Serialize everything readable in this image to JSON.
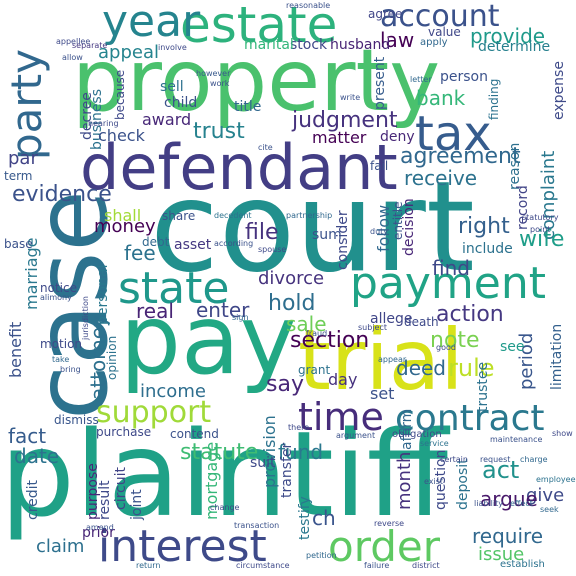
{
  "words": [
    {
      "text": "court",
      "color": "#21908d"
    },
    {
      "text": "plaintiff",
      "color": "#1fa187"
    },
    {
      "text": "property",
      "color": "#4ac16d"
    },
    {
      "text": "case",
      "color": "#2c728e"
    },
    {
      "text": "pay",
      "color": "#22a884"
    },
    {
      "text": "trial",
      "color": "#d8e219"
    },
    {
      "text": "defendant",
      "color": "#433e85"
    },
    {
      "text": "estate",
      "color": "#2db27d"
    },
    {
      "text": "year",
      "color": "#25848e"
    },
    {
      "text": "party",
      "color": "#31688e"
    },
    {
      "text": "tax",
      "color": "#365c8d"
    },
    {
      "text": "account",
      "color": "#3b528b"
    },
    {
      "text": "payment",
      "color": "#20a386"
    },
    {
      "text": "state",
      "color": "#1f988b"
    },
    {
      "text": "interest",
      "color": "#3e4a89"
    },
    {
      "text": "order",
      "color": "#5ec962"
    },
    {
      "text": "contract",
      "color": "#2a788e"
    },
    {
      "text": "time",
      "color": "#472d7b"
    },
    {
      "text": "support",
      "color": "#a0da39"
    },
    {
      "text": "section",
      "color": "#440154"
    },
    {
      "text": "rule",
      "color": "#bddf26"
    },
    {
      "text": "note",
      "color": "#7ad151"
    },
    {
      "text": "evidence",
      "color": "#3b528b"
    },
    {
      "text": "agreement",
      "color": "#31688e"
    },
    {
      "text": "judgment",
      "color": "#46327e"
    },
    {
      "text": "trust",
      "color": "#26828e"
    },
    {
      "text": "award",
      "color": "#482878"
    },
    {
      "text": "appeal",
      "color": "#25848e"
    },
    {
      "text": "provide",
      "color": "#1f9a8a"
    },
    {
      "text": "law",
      "color": "#440154"
    },
    {
      "text": "bank",
      "color": "#35b779"
    },
    {
      "text": "receive",
      "color": "#2c728e"
    },
    {
      "text": "complaint",
      "color": "#2a788e"
    },
    {
      "text": "right",
      "color": "#34608d"
    },
    {
      "text": "wife",
      "color": "#1f9e89"
    },
    {
      "text": "find",
      "color": "#3e4989"
    },
    {
      "text": "fee",
      "color": "#2c728e"
    },
    {
      "text": "file",
      "color": "#46327e"
    },
    {
      "text": "money",
      "color": "#440154"
    },
    {
      "text": "shall",
      "color": "#a2da37"
    },
    {
      "text": "divorce",
      "color": "#46337e"
    },
    {
      "text": "hold",
      "color": "#2e6e8e"
    },
    {
      "text": "enter",
      "color": "#3f4788"
    },
    {
      "text": "real",
      "color": "#482475"
    },
    {
      "text": "sale",
      "color": "#6ece58"
    },
    {
      "text": "action",
      "color": "#453882"
    },
    {
      "text": "period",
      "color": "#39568c"
    },
    {
      "text": "income",
      "color": "#2e6e8e"
    },
    {
      "text": "say",
      "color": "#482878"
    },
    {
      "text": "day",
      "color": "#46327e"
    },
    {
      "text": "set",
      "color": "#3b528b"
    },
    {
      "text": "deed",
      "color": "#31688e"
    },
    {
      "text": "fact",
      "color": "#365c8d"
    },
    {
      "text": "date",
      "color": "#2c728e"
    },
    {
      "text": "statute",
      "color": "#3fbc73"
    },
    {
      "text": "fund",
      "color": "#2a788e"
    },
    {
      "text": "month",
      "color": "#46327e"
    },
    {
      "text": "act",
      "color": "#21918c"
    },
    {
      "text": "give",
      "color": "#3e4a89"
    },
    {
      "text": "argue",
      "color": "#48186a"
    },
    {
      "text": "require",
      "color": "#31688e"
    },
    {
      "text": "issue",
      "color": "#54c568"
    },
    {
      "text": "claim",
      "color": "#2d708e"
    },
    {
      "text": "prior",
      "color": "#482576"
    },
    {
      "text": "ch",
      "color": "#3a548c"
    },
    {
      "text": "benefit",
      "color": "#3b528b"
    },
    {
      "text": "marriage",
      "color": "#2a788e"
    },
    {
      "text": "attorney",
      "color": "#2d708e"
    },
    {
      "text": "business",
      "color": "#2c728e"
    },
    {
      "text": "decree",
      "color": "#3e4a89"
    },
    {
      "text": "par",
      "color": "#414487"
    },
    {
      "text": "check",
      "color": "#3b528b"
    },
    {
      "text": "matter",
      "color": "#440154"
    },
    {
      "text": "stock",
      "color": "#3f4788"
    },
    {
      "text": "husband",
      "color": "#482475"
    },
    {
      "text": "marital",
      "color": "#32b67a"
    },
    {
      "text": "sell",
      "color": "#2d708e"
    },
    {
      "text": "child",
      "color": "#3b528b"
    },
    {
      "text": "agree",
      "color": "#404688"
    },
    {
      "text": "value",
      "color": "#3f4788"
    },
    {
      "text": "determine",
      "color": "#27808e"
    },
    {
      "text": "person",
      "color": "#3b528b"
    },
    {
      "text": "present",
      "color": "#365c8d"
    },
    {
      "text": "deny",
      "color": "#482878"
    },
    {
      "text": "reason",
      "color": "#2d708e"
    },
    {
      "text": "record",
      "color": "#414487"
    },
    {
      "text": "expense",
      "color": "#3e4a89"
    },
    {
      "text": "limitation",
      "color": "#34608d"
    },
    {
      "text": "follow",
      "color": "#31688e"
    },
    {
      "text": "entitle",
      "color": "#3b528b"
    },
    {
      "text": "decision",
      "color": "#482677"
    },
    {
      "text": "include",
      "color": "#2c728e"
    },
    {
      "text": "allege",
      "color": "#404688"
    },
    {
      "text": "consider",
      "color": "#3e4989"
    },
    {
      "text": "sum",
      "color": "#3b528b"
    },
    {
      "text": "asset",
      "color": "#453882"
    },
    {
      "text": "debt",
      "color": "#31688e"
    },
    {
      "text": "personal",
      "color": "#2a788e"
    },
    {
      "text": "notice",
      "color": "#3e4989"
    },
    {
      "text": "motion",
      "color": "#3e4a89"
    },
    {
      "text": "opinion",
      "color": "#2c728e"
    },
    {
      "text": "purchase",
      "color": "#3e4989"
    },
    {
      "text": "contend",
      "color": "#3b528b"
    },
    {
      "text": "provision",
      "color": "#2c728e"
    },
    {
      "text": "circuit",
      "color": "#414487"
    },
    {
      "text": "transfer",
      "color": "#3e4a89"
    },
    {
      "text": "mortgage",
      "color": "#35b779"
    },
    {
      "text": "joint",
      "color": "#3b528b"
    },
    {
      "text": "purpose",
      "color": "#482878"
    },
    {
      "text": "result",
      "color": "#3e4989"
    },
    {
      "text": "credit",
      "color": "#38598c"
    },
    {
      "text": "dismiss",
      "color": "#39568c"
    },
    {
      "text": "share",
      "color": "#3b528b"
    },
    {
      "text": "grant",
      "color": "#2c728e"
    },
    {
      "text": "suit",
      "color": "#3e4989"
    },
    {
      "text": "testify",
      "color": "#2a788e"
    },
    {
      "text": "trustee",
      "color": "#2c728e"
    },
    {
      "text": "question",
      "color": "#3e4989"
    },
    {
      "text": "affirm",
      "color": "#31688e"
    },
    {
      "text": "deposit",
      "color": "#2c728e"
    },
    {
      "text": "see",
      "color": "#1f9a8a"
    },
    {
      "text": "death",
      "color": "#3e4989"
    },
    {
      "text": "base",
      "color": "#3b528b"
    },
    {
      "text": "term",
      "color": "#38598c"
    },
    {
      "text": "fail",
      "color": "#3b528b"
    },
    {
      "text": "finding",
      "color": "#2c728e"
    },
    {
      "text": "because",
      "color": "#3e4989"
    },
    {
      "text": "work",
      "color": "#3b528b"
    },
    {
      "text": "however",
      "color": "#38598c"
    },
    {
      "text": "involve",
      "color": "#3e4989"
    },
    {
      "text": "separate",
      "color": "#453882"
    },
    {
      "text": "apply",
      "color": "#31688e"
    },
    {
      "text": "reasonable",
      "color": "#3b528b"
    },
    {
      "text": "appellee",
      "color": "#3e4989"
    },
    {
      "text": "allow",
      "color": "#3b528b"
    },
    {
      "text": "partnership",
      "color": "#31688e"
    },
    {
      "text": "decedent",
      "color": "#2c728e"
    },
    {
      "text": "according",
      "color": "#3b528b"
    },
    {
      "text": "spouse",
      "color": "#3e4989"
    },
    {
      "text": "duty",
      "color": "#3b528b"
    },
    {
      "text": "obligation",
      "color": "#3e4989"
    },
    {
      "text": "argument",
      "color": "#3b528b"
    },
    {
      "text": "appear",
      "color": "#31688e"
    },
    {
      "text": "service",
      "color": "#2c728e"
    },
    {
      "text": "certain",
      "color": "#3e4989"
    },
    {
      "text": "request",
      "color": "#3b528b"
    },
    {
      "text": "charge",
      "color": "#31688e"
    },
    {
      "text": "show",
      "color": "#3e4989"
    },
    {
      "text": "exist",
      "color": "#3b528b"
    },
    {
      "text": "employee",
      "color": "#2c728e"
    },
    {
      "text": "seek",
      "color": "#31688e"
    },
    {
      "text": "district",
      "color": "#3e4989"
    },
    {
      "text": "establish",
      "color": "#2c728e"
    },
    {
      "text": "failure",
      "color": "#3b528b"
    },
    {
      "text": "circumstance",
      "color": "#3e4989"
    },
    {
      "text": "return",
      "color": "#31688e"
    },
    {
      "text": "amend",
      "color": "#3b528b"
    },
    {
      "text": "reverse",
      "color": "#3e4989"
    },
    {
      "text": "petition",
      "color": "#31688e"
    },
    {
      "text": "transaction",
      "color": "#3b528b"
    },
    {
      "text": "jurisdiction",
      "color": "#3e4989"
    },
    {
      "text": "alimony",
      "color": "#3b528b"
    },
    {
      "text": "statutory",
      "color": "#3e4989"
    },
    {
      "text": "maintenance",
      "color": "#3b528b"
    },
    {
      "text": "title",
      "color": "#31688e"
    },
    {
      "text": "subject",
      "color": "#3e4989"
    },
    {
      "text": "write",
      "color": "#3b528b"
    },
    {
      "text": "letter",
      "color": "#31688e"
    },
    {
      "text": "hearing",
      "color": "#3e4989"
    },
    {
      "text": "cite",
      "color": "#3b528b"
    },
    {
      "text": "point",
      "color": "#3e4989"
    },
    {
      "text": "bring",
      "color": "#3b528b"
    },
    {
      "text": "take",
      "color": "#31688e"
    },
    {
      "text": "good",
      "color": "#3e4989"
    },
    {
      "text": "fraud",
      "color": "#3b528b"
    },
    {
      "text": "sign",
      "color": "#31688e"
    },
    {
      "text": "change",
      "color": "#3e4989"
    },
    {
      "text": "liability",
      "color": "#3b528b"
    },
    {
      "text": "effect",
      "color": "#31688e"
    },
    {
      "text": "there",
      "color": "#3e4989"
    }
  ]
}
